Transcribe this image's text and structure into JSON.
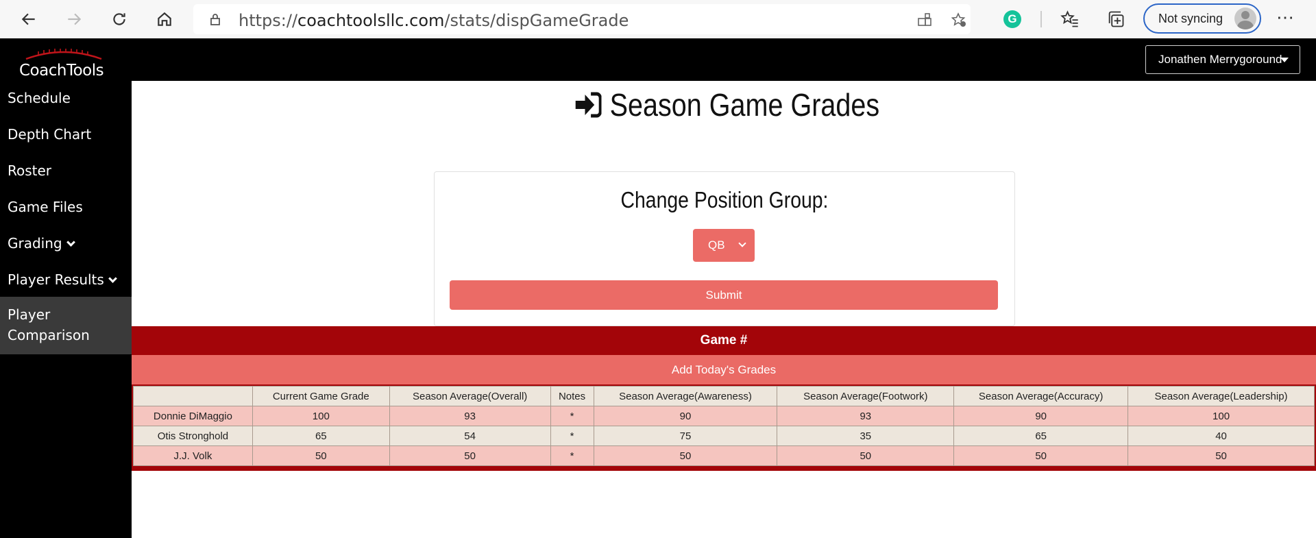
{
  "browser": {
    "url_prefix": "https://",
    "url_host": "coachtoolsllc.com",
    "url_path": "/stats/dispGameGrade",
    "sync_label": "Not syncing",
    "grammarly_letter": "G"
  },
  "app": {
    "logo_text": "CoachTools",
    "user_name": "Jonathen Merrygoround",
    "sidebar": {
      "items": [
        {
          "label": "Schedule"
        },
        {
          "label": "Depth Chart"
        },
        {
          "label": "Roster"
        },
        {
          "label": "Game Files"
        },
        {
          "label": "Grading"
        },
        {
          "label": "Player Results"
        },
        {
          "label": "Player"
        },
        {
          "label": "Comparison"
        }
      ]
    },
    "page_title": "Season Game Grades",
    "position_form": {
      "title": "Change Position Group:",
      "selected": "QB",
      "submit_label": "Submit"
    },
    "game_label": "Game #",
    "add_grades_label": "Add Today's Grades",
    "table": {
      "headers": [
        "",
        "Current Game Grade",
        "Season Average(Overall)",
        "Notes",
        "Season Average(Awareness)",
        "Season Average(Footwork)",
        "Season Average(Accuracy)",
        "Season Average(Leadership)"
      ],
      "rows": [
        [
          "Donnie DiMaggio",
          "100",
          "93",
          "*",
          "90",
          "93",
          "90",
          "100"
        ],
        [
          "Otis Stronghold",
          "65",
          "54",
          "*",
          "75",
          "35",
          "65",
          "40"
        ],
        [
          "J.J. Volk",
          "50",
          "50",
          "*",
          "50",
          "50",
          "50",
          "50"
        ]
      ]
    }
  },
  "colors": {
    "accent_red": "#a30509",
    "salmon": "#eb6b66",
    "row_pink": "#f5c5bf",
    "row_beige": "#ede6dc"
  }
}
